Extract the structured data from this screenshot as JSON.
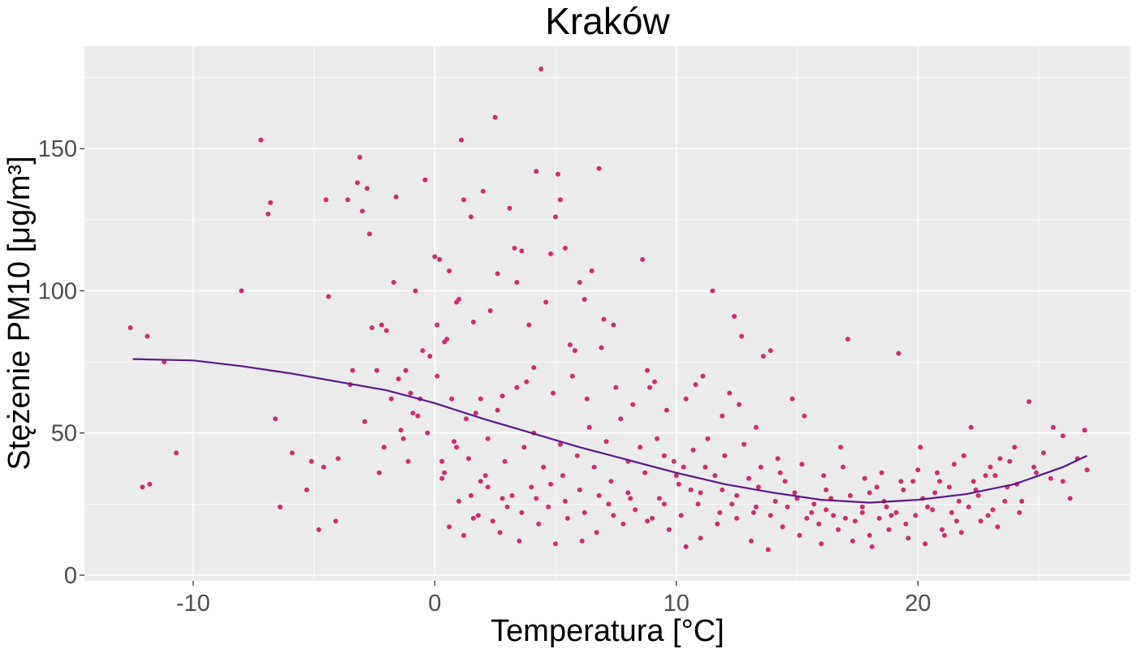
{
  "chart_data": {
    "type": "scatter",
    "title": "Kraków",
    "xlabel": "Temperatura [°C]",
    "ylabel": "Stężenie PM10 [μg/m³]",
    "xlim": [
      -14.5,
      28.8
    ],
    "ylim": [
      -2,
      186
    ],
    "x_ticks": [
      -10,
      0,
      10,
      20
    ],
    "x_tick_labels": [
      "-10",
      "0",
      "10",
      "20"
    ],
    "y_ticks": [
      0,
      50,
      100,
      150
    ],
    "y_tick_labels": [
      "0",
      "50",
      "100",
      "150"
    ],
    "grid": true,
    "background": "#EBEBEB",
    "point_color": "#CC2E6E",
    "line_color": "#5B1A8A",
    "points": [
      [
        -12.6,
        87
      ],
      [
        -12.1,
        31
      ],
      [
        -11.9,
        84
      ],
      [
        -11.8,
        32
      ],
      [
        -11.2,
        75
      ],
      [
        -10.7,
        43
      ],
      [
        -8.0,
        100
      ],
      [
        -7.2,
        153
      ],
      [
        -6.9,
        127
      ],
      [
        -6.8,
        131
      ],
      [
        -6.6,
        55
      ],
      [
        -6.4,
        24
      ],
      [
        -5.9,
        43
      ],
      [
        -5.3,
        30
      ],
      [
        -5.1,
        40
      ],
      [
        -4.8,
        16
      ],
      [
        -4.5,
        132
      ],
      [
        -4.4,
        98
      ],
      [
        -4.1,
        19
      ],
      [
        -3.6,
        132
      ],
      [
        -3.4,
        72
      ],
      [
        -3.2,
        138
      ],
      [
        -3.1,
        147
      ],
      [
        -3.0,
        128
      ],
      [
        -2.8,
        136
      ],
      [
        -2.7,
        120
      ],
      [
        -2.6,
        87
      ],
      [
        -2.4,
        72
      ],
      [
        -2.2,
        88
      ],
      [
        -2.0,
        86
      ],
      [
        -1.8,
        62
      ],
      [
        -1.7,
        103
      ],
      [
        -1.6,
        133
      ],
      [
        -1.5,
        69
      ],
      [
        -1.3,
        48
      ],
      [
        -1.2,
        72
      ],
      [
        -1.0,
        64
      ],
      [
        -0.9,
        57
      ],
      [
        -0.8,
        100
      ],
      [
        -0.6,
        62
      ],
      [
        -0.5,
        79
      ],
      [
        -0.4,
        139
      ],
      [
        -0.3,
        50
      ],
      [
        -0.2,
        77
      ],
      [
        0.0,
        112
      ],
      [
        0.1,
        88
      ],
      [
        0.2,
        111
      ],
      [
        0.3,
        34
      ],
      [
        0.4,
        82
      ],
      [
        0.5,
        83
      ],
      [
        0.6,
        107
      ],
      [
        0.7,
        62
      ],
      [
        0.8,
        47
      ],
      [
        0.9,
        96
      ],
      [
        1.0,
        97
      ],
      [
        1.1,
        153
      ],
      [
        1.2,
        132
      ],
      [
        1.4,
        41
      ],
      [
        1.5,
        126
      ],
      [
        1.6,
        89
      ],
      [
        1.7,
        57
      ],
      [
        1.9,
        33
      ],
      [
        2.0,
        135
      ],
      [
        2.2,
        48
      ],
      [
        2.3,
        93
      ],
      [
        2.5,
        161
      ],
      [
        2.6,
        106
      ],
      [
        2.8,
        63
      ],
      [
        3.0,
        24
      ],
      [
        3.1,
        129
      ],
      [
        3.3,
        115
      ],
      [
        3.4,
        103
      ],
      [
        3.6,
        114
      ],
      [
        3.8,
        68
      ],
      [
        3.9,
        88
      ],
      [
        4.1,
        50
      ],
      [
        4.2,
        142
      ],
      [
        4.4,
        178
      ],
      [
        4.6,
        96
      ],
      [
        4.8,
        113
      ],
      [
        5.0,
        126
      ],
      [
        5.1,
        141
      ],
      [
        5.2,
        132
      ],
      [
        5.4,
        115
      ],
      [
        5.6,
        81
      ],
      [
        5.8,
        79
      ],
      [
        6.0,
        103
      ],
      [
        6.2,
        97
      ],
      [
        6.5,
        107
      ],
      [
        6.8,
        143
      ],
      [
        7.0,
        90
      ],
      [
        7.4,
        88
      ],
      [
        8.0,
        40
      ],
      [
        8.6,
        111
      ],
      [
        8.8,
        72
      ],
      [
        9.1,
        68
      ],
      [
        9.5,
        42
      ],
      [
        10.0,
        35
      ],
      [
        10.3,
        38
      ],
      [
        10.6,
        30
      ],
      [
        10.8,
        67
      ],
      [
        11.2,
        38
      ],
      [
        11.5,
        100
      ],
      [
        11.9,
        30
      ],
      [
        12.2,
        64
      ],
      [
        12.4,
        91
      ],
      [
        12.7,
        84
      ],
      [
        13.0,
        34
      ],
      [
        13.3,
        24
      ],
      [
        13.6,
        77
      ],
      [
        13.9,
        79
      ],
      [
        14.2,
        41
      ],
      [
        14.5,
        33
      ],
      [
        14.8,
        62
      ],
      [
        15.0,
        27
      ],
      [
        15.3,
        56
      ],
      [
        15.6,
        22
      ],
      [
        15.9,
        18
      ],
      [
        16.2,
        30
      ],
      [
        16.5,
        21
      ],
      [
        16.8,
        45
      ],
      [
        17.1,
        83
      ],
      [
        17.4,
        19
      ],
      [
        17.7,
        24
      ],
      [
        18.0,
        14
      ],
      [
        18.3,
        31
      ],
      [
        18.6,
        26
      ],
      [
        18.9,
        21
      ],
      [
        19.2,
        78
      ],
      [
        19.5,
        18
      ],
      [
        19.8,
        33
      ],
      [
        20.1,
        45
      ],
      [
        20.4,
        24
      ],
      [
        20.7,
        29
      ],
      [
        21.0,
        16
      ],
      [
        21.3,
        31
      ],
      [
        21.6,
        19
      ],
      [
        21.9,
        42
      ],
      [
        22.2,
        52
      ],
      [
        22.5,
        28
      ],
      [
        22.8,
        35
      ],
      [
        23.1,
        23
      ],
      [
        23.4,
        41
      ],
      [
        23.7,
        31
      ],
      [
        24.0,
        45
      ],
      [
        24.3,
        26
      ],
      [
        24.6,
        61
      ],
      [
        24.9,
        36
      ],
      [
        25.2,
        43
      ],
      [
        25.6,
        52
      ],
      [
        26.0,
        33
      ],
      [
        26.3,
        27
      ],
      [
        26.6,
        41
      ],
      [
        26.9,
        51
      ],
      [
        27.0,
        37
      ],
      [
        26.0,
        49
      ],
      [
        5.5,
        20
      ],
      [
        6.1,
        12
      ],
      [
        6.7,
        15
      ],
      [
        7.2,
        25
      ],
      [
        7.8,
        18
      ],
      [
        8.3,
        23
      ],
      [
        9.0,
        20
      ],
      [
        9.7,
        16
      ],
      [
        10.4,
        10
      ],
      [
        11.0,
        13
      ],
      [
        11.7,
        18
      ],
      [
        12.3,
        25
      ],
      [
        13.1,
        12
      ],
      [
        13.8,
        9
      ],
      [
        14.4,
        17
      ],
      [
        15.1,
        14
      ],
      [
        16.0,
        11
      ],
      [
        16.7,
        16
      ],
      [
        17.3,
        12
      ],
      [
        18.1,
        10
      ],
      [
        18.8,
        16
      ],
      [
        19.6,
        13
      ],
      [
        20.3,
        11
      ],
      [
        21.1,
        14
      ],
      [
        21.8,
        15
      ],
      [
        22.6,
        19
      ],
      [
        23.3,
        17
      ],
      [
        24.2,
        22
      ],
      [
        2.7,
        15
      ],
      [
        3.5,
        12
      ],
      [
        4.3,
        18
      ],
      [
        5.0,
        11
      ],
      [
        1.2,
        14
      ],
      [
        0.6,
        17
      ],
      [
        1.8,
        21
      ],
      [
        2.4,
        19
      ],
      [
        3.2,
        28
      ],
      [
        4.0,
        31
      ],
      [
        4.7,
        24
      ],
      [
        5.3,
        35
      ],
      [
        6.0,
        30
      ],
      [
        6.6,
        38
      ],
      [
        7.3,
        33
      ],
      [
        8.0,
        29
      ],
      [
        8.7,
        36
      ],
      [
        9.3,
        27
      ],
      [
        10.1,
        32
      ],
      [
        10.9,
        25
      ],
      [
        11.6,
        35
      ],
      [
        12.5,
        28
      ],
      [
        13.4,
        31
      ],
      [
        14.1,
        26
      ],
      [
        14.9,
        29
      ],
      [
        15.7,
        25
      ],
      [
        16.4,
        27
      ],
      [
        17.2,
        28
      ],
      [
        18.0,
        29
      ],
      [
        18.7,
        24
      ],
      [
        19.4,
        30
      ],
      [
        20.2,
        27
      ],
      [
        20.9,
        33
      ],
      [
        21.7,
        26
      ],
      [
        22.4,
        30
      ],
      [
        23.2,
        35
      ],
      [
        24.1,
        32
      ],
      [
        24.8,
        38
      ],
      [
        25.5,
        34
      ],
      [
        1.5,
        28
      ],
      [
        2.1,
        35
      ],
      [
        2.9,
        40
      ],
      [
        3.7,
        45
      ],
      [
        4.5,
        38
      ],
      [
        5.2,
        46
      ],
      [
        5.9,
        42
      ],
      [
        6.4,
        52
      ],
      [
        7.1,
        47
      ],
      [
        7.7,
        55
      ],
      [
        8.5,
        45
      ],
      [
        9.2,
        48
      ],
      [
        9.9,
        40
      ],
      [
        10.7,
        44
      ],
      [
        11.3,
        48
      ],
      [
        12.0,
        42
      ],
      [
        12.8,
        46
      ],
      [
        13.5,
        38
      ],
      [
        14.3,
        36
      ],
      [
        15.2,
        39
      ],
      [
        16.1,
        35
      ],
      [
        16.9,
        38
      ],
      [
        17.8,
        34
      ],
      [
        18.5,
        36
      ],
      [
        19.3,
        33
      ],
      [
        20.0,
        37
      ],
      [
        20.8,
        36
      ],
      [
        21.5,
        39
      ],
      [
        22.3,
        33
      ],
      [
        23.0,
        38
      ],
      [
        23.8,
        40
      ],
      [
        0.3,
        40
      ],
      [
        0.9,
        45
      ],
      [
        1.3,
        55
      ],
      [
        1.9,
        62
      ],
      [
        2.6,
        58
      ],
      [
        3.4,
        66
      ],
      [
        4.1,
        73
      ],
      [
        4.9,
        64
      ],
      [
        5.7,
        70
      ],
      [
        6.3,
        62
      ],
      [
        6.9,
        80
      ],
      [
        7.5,
        66
      ],
      [
        8.2,
        60
      ],
      [
        8.9,
        66
      ],
      [
        9.6,
        58
      ],
      [
        10.4,
        62
      ],
      [
        11.1,
        70
      ],
      [
        11.9,
        56
      ],
      [
        12.6,
        60
      ],
      [
        13.3,
        52
      ],
      [
        0.1,
        70
      ],
      [
        -0.7,
        56
      ],
      [
        -1.4,
        51
      ],
      [
        -2.1,
        45
      ],
      [
        -2.9,
        54
      ],
      [
        -3.5,
        67
      ],
      [
        -4.0,
        41
      ],
      [
        -4.6,
        38
      ],
      [
        -2.3,
        36
      ],
      [
        -1.1,
        40
      ],
      [
        0.4,
        36
      ],
      [
        1.0,
        26
      ],
      [
        1.6,
        20
      ],
      [
        2.2,
        31
      ],
      [
        2.8,
        27
      ],
      [
        3.6,
        22
      ],
      [
        4.2,
        27
      ],
      [
        4.8,
        32
      ],
      [
        5.4,
        26
      ],
      [
        6.2,
        22
      ],
      [
        6.8,
        28
      ],
      [
        7.4,
        21
      ],
      [
        8.1,
        27
      ],
      [
        8.8,
        19
      ],
      [
        9.5,
        25
      ],
      [
        10.2,
        21
      ],
      [
        11.0,
        29
      ],
      [
        11.8,
        22
      ],
      [
        12.5,
        20
      ],
      [
        13.2,
        22
      ],
      [
        13.9,
        21
      ],
      [
        14.6,
        24
      ],
      [
        15.4,
        20
      ],
      [
        16.2,
        23
      ],
      [
        17.0,
        20
      ],
      [
        17.7,
        22
      ],
      [
        18.4,
        20
      ],
      [
        19.1,
        22
      ],
      [
        19.9,
        21
      ],
      [
        20.6,
        23
      ],
      [
        21.4,
        22
      ],
      [
        22.1,
        24
      ],
      [
        22.9,
        21
      ],
      [
        23.6,
        26
      ]
    ],
    "trend": [
      [
        -12.5,
        76
      ],
      [
        -10.0,
        75.5
      ],
      [
        -8.0,
        73.5
      ],
      [
        -6.0,
        71
      ],
      [
        -4.0,
        68
      ],
      [
        -2.0,
        65
      ],
      [
        0.0,
        60.5
      ],
      [
        2.0,
        55
      ],
      [
        4.0,
        50
      ],
      [
        6.0,
        45
      ],
      [
        8.0,
        40.5
      ],
      [
        10.0,
        36
      ],
      [
        12.0,
        32
      ],
      [
        14.0,
        29
      ],
      [
        16.0,
        26.5
      ],
      [
        18.0,
        25.5
      ],
      [
        20.0,
        26.5
      ],
      [
        22.0,
        28.5
      ],
      [
        24.0,
        32
      ],
      [
        26.0,
        38
      ],
      [
        27.0,
        42
      ]
    ]
  }
}
